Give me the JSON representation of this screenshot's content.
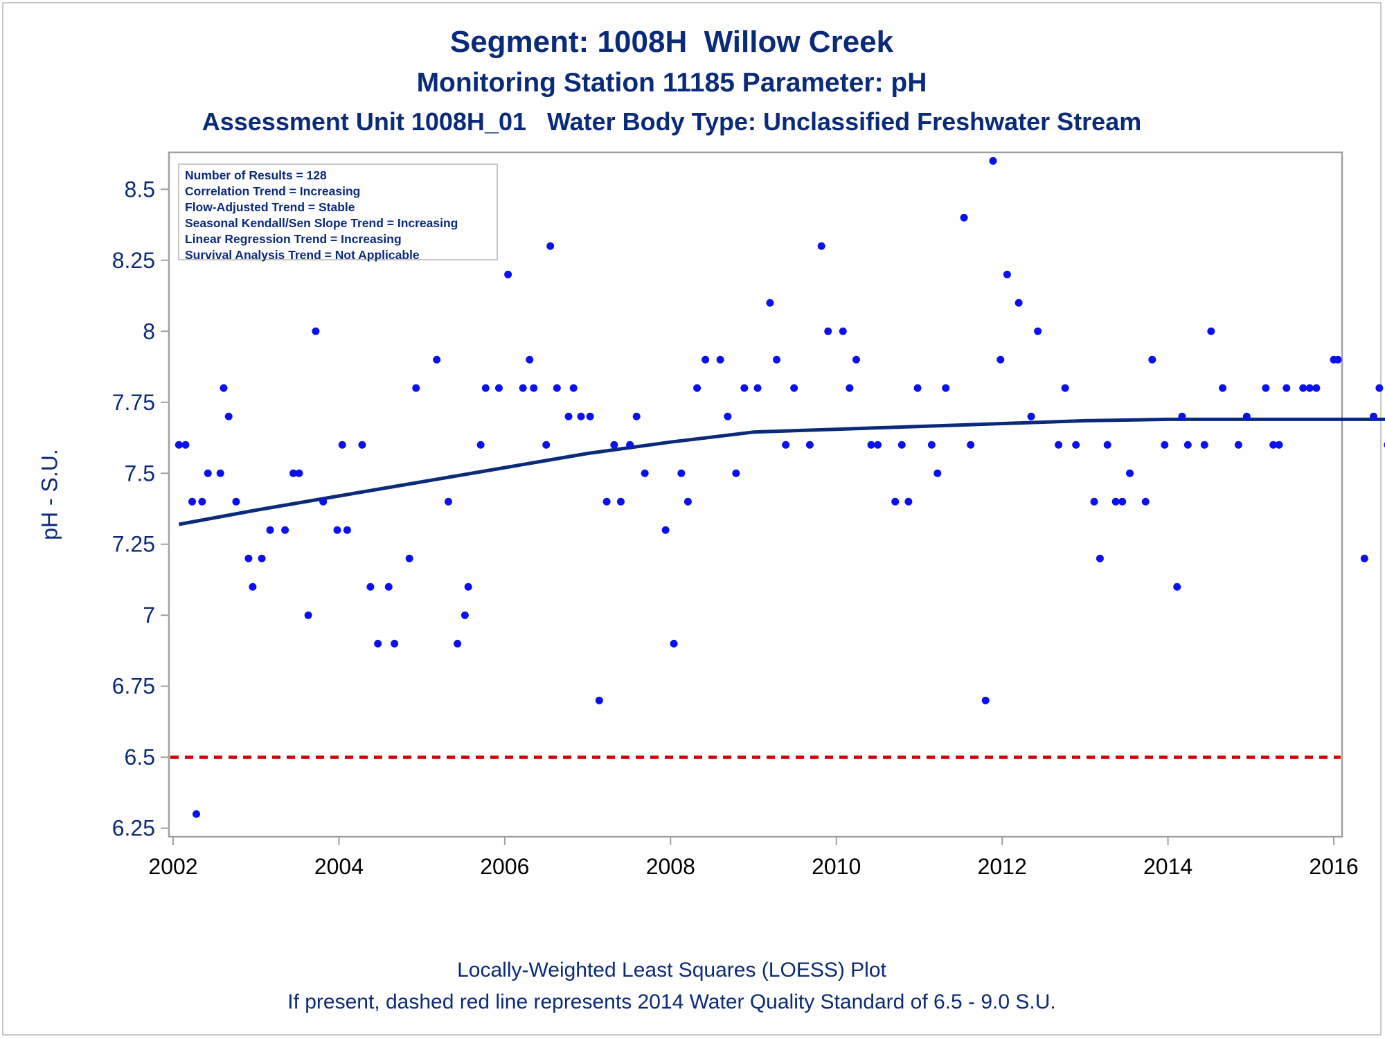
{
  "titles": {
    "line1": "Segment: 1008H  Willow Creek",
    "line2": "Monitoring Station 11185 Parameter: pH",
    "line3": "Assessment Unit 1008H_01   Water Body Type: Unclassified Freshwater Stream"
  },
  "stats_box": [
    "Number of Results = 128",
    "Correlation Trend = Increasing",
    "Flow-Adjusted Trend = Stable",
    "Seasonal Kendall/Sen Slope Trend = Increasing",
    "Linear Regression Trend = Increasing",
    "Survival Analysis Trend = Not Applicable"
  ],
  "footnotes": {
    "line1": "Locally-Weighted Least Squares (LOESS) Plot",
    "line2": "If present, dashed red line represents 2014 Water Quality Standard of 6.5 - 9.0 S.U."
  },
  "colors": {
    "text": "#0a2a7a",
    "points": "#0a10ee",
    "loess": "#0a2a7a",
    "standard_line": "#d00000",
    "frame": "#a0a0a0"
  },
  "chart_data": {
    "type": "scatter",
    "ylabel": "pH - S.U.",
    "xlabel": "",
    "xlim": [
      2001.95,
      2016.1
    ],
    "ylim": [
      6.22,
      8.63
    ],
    "x_ticks": [
      2002,
      2004,
      2006,
      2008,
      2010,
      2012,
      2014,
      2016
    ],
    "y_ticks": [
      6.25,
      6.5,
      6.75,
      7,
      7.25,
      7.5,
      7.75,
      8,
      8.25,
      8.5
    ],
    "y_tick_labels": [
      "6.25",
      "6.5",
      "6.75",
      "7",
      "7.25",
      "7.5",
      "7.75",
      "8",
      "8.25",
      "8.5"
    ],
    "grid": false,
    "reference_line": {
      "y": 6.5,
      "style": "dashed"
    },
    "series": [
      {
        "type": "scatter",
        "points": [
          [
            2002.07,
            7.6
          ],
          [
            2002.15,
            7.6
          ],
          [
            2002.23,
            7.4
          ],
          [
            2002.28,
            6.3
          ],
          [
            2002.35,
            7.4
          ],
          [
            2002.42,
            7.5
          ],
          [
            2002.57,
            7.5
          ],
          [
            2002.61,
            7.8
          ],
          [
            2002.67,
            7.7
          ],
          [
            2002.76,
            7.4
          ],
          [
            2002.91,
            7.2
          ],
          [
            2002.96,
            7.1
          ],
          [
            2003.07,
            7.2
          ],
          [
            2003.17,
            7.3
          ],
          [
            2003.35,
            7.3
          ],
          [
            2003.45,
            7.5
          ],
          [
            2003.52,
            7.5
          ],
          [
            2003.63,
            7.0
          ],
          [
            2003.72,
            8.0
          ],
          [
            2003.81,
            7.4
          ],
          [
            2003.98,
            7.3
          ],
          [
            2004.04,
            7.6
          ],
          [
            2004.1,
            7.3
          ],
          [
            2004.28,
            7.6
          ],
          [
            2004.38,
            7.1
          ],
          [
            2004.47,
            6.9
          ],
          [
            2004.6,
            7.1
          ],
          [
            2004.67,
            6.9
          ],
          [
            2004.85,
            7.2
          ],
          [
            2004.93,
            7.8
          ],
          [
            2005.18,
            7.9
          ],
          [
            2005.32,
            7.4
          ],
          [
            2005.43,
            6.9
          ],
          [
            2005.52,
            7.0
          ],
          [
            2005.56,
            7.1
          ],
          [
            2005.71,
            7.6
          ],
          [
            2005.77,
            7.8
          ],
          [
            2005.93,
            7.8
          ],
          [
            2006.04,
            8.2
          ],
          [
            2006.22,
            7.8
          ],
          [
            2006.3,
            7.9
          ],
          [
            2006.35,
            7.8
          ],
          [
            2006.5,
            7.6
          ],
          [
            2006.55,
            8.3
          ],
          [
            2006.63,
            7.8
          ],
          [
            2006.77,
            7.7
          ],
          [
            2006.83,
            7.8
          ],
          [
            2006.92,
            7.7
          ],
          [
            2007.03,
            7.7
          ],
          [
            2007.14,
            6.7
          ],
          [
            2007.23,
            7.4
          ],
          [
            2007.32,
            7.6
          ],
          [
            2007.4,
            7.4
          ],
          [
            2007.51,
            7.6
          ],
          [
            2007.59,
            7.7
          ],
          [
            2007.69,
            7.5
          ],
          [
            2007.94,
            7.3
          ],
          [
            2008.04,
            6.9
          ],
          [
            2008.13,
            7.5
          ],
          [
            2008.21,
            7.4
          ],
          [
            2008.32,
            7.8
          ],
          [
            2008.42,
            7.9
          ],
          [
            2008.6,
            7.9
          ],
          [
            2008.69,
            7.7
          ],
          [
            2008.79,
            7.5
          ],
          [
            2008.89,
            7.8
          ],
          [
            2009.05,
            7.8
          ],
          [
            2009.2,
            8.1
          ],
          [
            2009.28,
            7.9
          ],
          [
            2009.39,
            7.6
          ],
          [
            2009.49,
            7.8
          ],
          [
            2009.68,
            7.6
          ],
          [
            2009.82,
            8.3
          ],
          [
            2009.9,
            8.0
          ],
          [
            2010.08,
            8.0
          ],
          [
            2010.16,
            7.8
          ],
          [
            2010.24,
            7.9
          ],
          [
            2010.42,
            7.6
          ],
          [
            2010.5,
            7.6
          ],
          [
            2010.71,
            7.4
          ],
          [
            2010.79,
            7.6
          ],
          [
            2010.87,
            7.4
          ],
          [
            2010.98,
            7.8
          ],
          [
            2011.15,
            7.6
          ],
          [
            2011.22,
            7.5
          ],
          [
            2011.32,
            7.8
          ],
          [
            2011.54,
            8.4
          ],
          [
            2011.62,
            7.6
          ],
          [
            2011.8,
            6.7
          ],
          [
            2011.89,
            8.6
          ],
          [
            2011.98,
            7.9
          ],
          [
            2012.06,
            8.2
          ],
          [
            2012.2,
            8.1
          ],
          [
            2012.35,
            7.7
          ],
          [
            2012.43,
            8.0
          ],
          [
            2012.68,
            7.6
          ],
          [
            2012.76,
            7.8
          ],
          [
            2012.89,
            7.6
          ],
          [
            2013.11,
            7.4
          ],
          [
            2013.18,
            7.2
          ],
          [
            2013.27,
            7.6
          ],
          [
            2013.37,
            7.4
          ],
          [
            2013.45,
            7.4
          ],
          [
            2013.54,
            7.5
          ],
          [
            2013.73,
            7.4
          ],
          [
            2013.81,
            7.9
          ],
          [
            2013.96,
            7.6
          ],
          [
            2014.11,
            7.1
          ],
          [
            2014.17,
            7.7
          ],
          [
            2014.24,
            7.6
          ],
          [
            2014.44,
            7.6
          ],
          [
            2014.52,
            8.0
          ],
          [
            2014.66,
            7.8
          ],
          [
            2014.85,
            7.6
          ],
          [
            2014.95,
            7.7
          ],
          [
            2015.18,
            7.8
          ],
          [
            2015.27,
            7.6
          ],
          [
            2015.34,
            7.6
          ],
          [
            2015.43,
            7.8
          ],
          [
            2015.63,
            7.8
          ],
          [
            2015.71,
            7.8
          ],
          [
            2015.79,
            7.8
          ],
          [
            2016.0,
            7.9
          ],
          [
            2016.05,
            7.9
          ],
          [
            2016.37,
            7.2
          ],
          [
            2016.48,
            7.7
          ],
          [
            2016.55,
            7.8
          ],
          [
            2016.65,
            7.6
          ]
        ]
      },
      {
        "type": "line",
        "points": [
          [
            2002.07,
            7.32
          ],
          [
            2003.0,
            7.37
          ],
          [
            2004.0,
            7.42
          ],
          [
            2005.0,
            7.47
          ],
          [
            2006.0,
            7.52
          ],
          [
            2007.0,
            7.57
          ],
          [
            2008.0,
            7.61
          ],
          [
            2009.0,
            7.645
          ],
          [
            2010.0,
            7.655
          ],
          [
            2011.0,
            7.665
          ],
          [
            2011.5,
            7.67
          ],
          [
            2012.0,
            7.675
          ],
          [
            2013.0,
            7.685
          ],
          [
            2014.0,
            7.69
          ],
          [
            2015.0,
            7.69
          ],
          [
            2016.0,
            7.69
          ],
          [
            2016.65,
            7.69
          ]
        ]
      }
    ]
  }
}
